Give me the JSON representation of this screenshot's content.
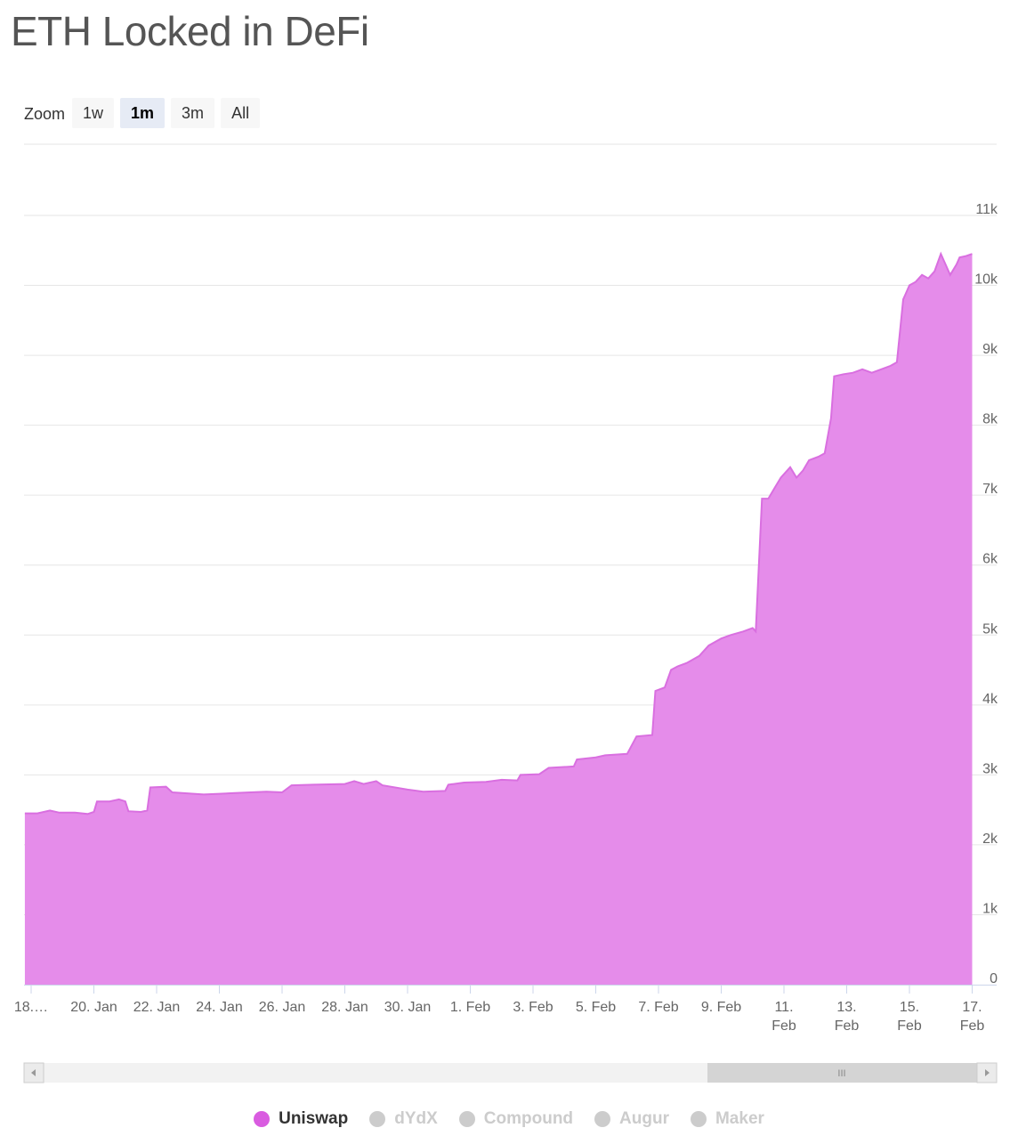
{
  "page": {
    "title": "ETH Locked in DeFi"
  },
  "zoom": {
    "label": "Zoom",
    "buttons": [
      {
        "label": "1w",
        "active": false
      },
      {
        "label": "1m",
        "active": true
      },
      {
        "label": "3m",
        "active": false
      },
      {
        "label": "All",
        "active": false
      }
    ]
  },
  "navigator": {
    "grip": "III"
  },
  "colors": {
    "series": "#e58cea",
    "series_line": "#d96fe0",
    "legend_active": "#d95ce0",
    "legend_inactive": "#cccccc"
  },
  "chart_data": {
    "type": "area",
    "title": "ETH Locked in DeFi",
    "xlabel": "",
    "ylabel": "",
    "x_range": [
      0,
      31
    ],
    "ylim": [
      0,
      11000
    ],
    "y_ticks": [
      0,
      1000,
      2000,
      3000,
      4000,
      5000,
      6000,
      7000,
      8000,
      9000,
      10000,
      11000
    ],
    "y_tick_labels": [
      "0",
      "1k",
      "2k",
      "3k",
      "4k",
      "5k",
      "6k",
      "7k",
      "8k",
      "9k",
      "10k",
      "11k"
    ],
    "x_ticks": [
      {
        "x": 0,
        "label": "18.…"
      },
      {
        "x": 2,
        "label": "20. Jan"
      },
      {
        "x": 4,
        "label": "22. Jan"
      },
      {
        "x": 6,
        "label": "24. Jan"
      },
      {
        "x": 8,
        "label": "26. Jan"
      },
      {
        "x": 10,
        "label": "28. Jan"
      },
      {
        "x": 12,
        "label": "30. Jan"
      },
      {
        "x": 14,
        "label": "1. Feb"
      },
      {
        "x": 16,
        "label": "3. Feb"
      },
      {
        "x": 18,
        "label": "5. Feb"
      },
      {
        "x": 20,
        "label": "7. Feb"
      },
      {
        "x": 22,
        "label": "9. Feb"
      },
      {
        "x": 24,
        "label": "11.\nFeb"
      },
      {
        "x": 26,
        "label": "13.\nFeb"
      },
      {
        "x": 28,
        "label": "15.\nFeb"
      },
      {
        "x": 30,
        "label": "17.\nFeb"
      }
    ],
    "grid": true,
    "legend": "bottom",
    "series": [
      {
        "name": "Uniswap",
        "visible": true,
        "points": [
          [
            -0.2,
            2450
          ],
          [
            0.2,
            2450
          ],
          [
            0.6,
            2490
          ],
          [
            0.9,
            2460
          ],
          [
            1.4,
            2460
          ],
          [
            1.8,
            2440
          ],
          [
            2.0,
            2470
          ],
          [
            2.1,
            2620
          ],
          [
            2.5,
            2620
          ],
          [
            2.8,
            2650
          ],
          [
            3.0,
            2620
          ],
          [
            3.1,
            2480
          ],
          [
            3.5,
            2470
          ],
          [
            3.7,
            2490
          ],
          [
            3.8,
            2820
          ],
          [
            4.3,
            2830
          ],
          [
            4.5,
            2750
          ],
          [
            5.5,
            2720
          ],
          [
            6.5,
            2740
          ],
          [
            7.5,
            2760
          ],
          [
            8.0,
            2750
          ],
          [
            8.3,
            2850
          ],
          [
            9.0,
            2860
          ],
          [
            10.0,
            2870
          ],
          [
            10.3,
            2910
          ],
          [
            10.6,
            2870
          ],
          [
            11.0,
            2910
          ],
          [
            11.2,
            2850
          ],
          [
            12.0,
            2790
          ],
          [
            12.5,
            2760
          ],
          [
            13.2,
            2770
          ],
          [
            13.3,
            2860
          ],
          [
            13.8,
            2890
          ],
          [
            14.5,
            2900
          ],
          [
            15.0,
            2930
          ],
          [
            15.5,
            2920
          ],
          [
            15.6,
            3000
          ],
          [
            16.2,
            3010
          ],
          [
            16.5,
            3100
          ],
          [
            17.3,
            3120
          ],
          [
            17.4,
            3220
          ],
          [
            18.0,
            3250
          ],
          [
            18.3,
            3280
          ],
          [
            19.0,
            3300
          ],
          [
            19.3,
            3550
          ],
          [
            19.8,
            3570
          ],
          [
            19.9,
            4200
          ],
          [
            20.2,
            4250
          ],
          [
            20.4,
            4500
          ],
          [
            20.6,
            4550
          ],
          [
            20.9,
            4600
          ],
          [
            21.3,
            4700
          ],
          [
            21.6,
            4850
          ],
          [
            22.0,
            4950
          ],
          [
            22.3,
            5000
          ],
          [
            22.7,
            5050
          ],
          [
            23.0,
            5100
          ],
          [
            23.1,
            5050
          ],
          [
            23.3,
            6950
          ],
          [
            23.5,
            6950
          ],
          [
            23.7,
            7100
          ],
          [
            23.9,
            7250
          ],
          [
            24.2,
            7400
          ],
          [
            24.4,
            7250
          ],
          [
            24.6,
            7350
          ],
          [
            24.8,
            7500
          ],
          [
            25.1,
            7550
          ],
          [
            25.3,
            7600
          ],
          [
            25.5,
            8100
          ],
          [
            25.6,
            8700
          ],
          [
            25.9,
            8730
          ],
          [
            26.2,
            8750
          ],
          [
            26.5,
            8800
          ],
          [
            26.8,
            8750
          ],
          [
            27.1,
            8800
          ],
          [
            27.4,
            8850
          ],
          [
            27.6,
            8900
          ],
          [
            27.8,
            9800
          ],
          [
            28.0,
            10000
          ],
          [
            28.2,
            10050
          ],
          [
            28.4,
            10150
          ],
          [
            28.6,
            10100
          ],
          [
            28.8,
            10200
          ],
          [
            29.0,
            10450
          ],
          [
            29.2,
            10250
          ],
          [
            29.3,
            10150
          ],
          [
            29.5,
            10300
          ],
          [
            29.6,
            10400
          ],
          [
            29.8,
            10420
          ],
          [
            30.0,
            10450
          ]
        ]
      },
      {
        "name": "dYdX",
        "visible": false
      },
      {
        "name": "Compound",
        "visible": false
      },
      {
        "name": "Augur",
        "visible": false
      },
      {
        "name": "Maker",
        "visible": false
      }
    ]
  }
}
